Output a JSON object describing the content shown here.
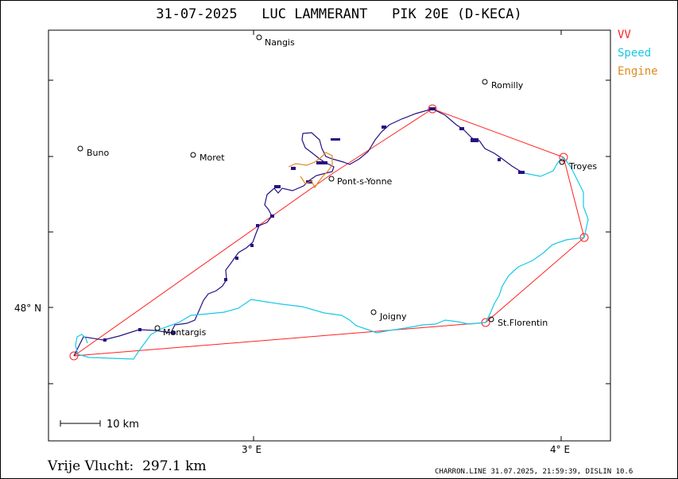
{
  "title": "31-07-2025   LUC LAMMERANT   PIK 20E (D-KECA)",
  "legend": [
    {
      "label": "VV",
      "color": "#ff2020"
    },
    {
      "label": "Speed",
      "color": "#18c8e8"
    },
    {
      "label": "Engine",
      "color": "#e08a1c"
    }
  ],
  "axes": {
    "x_ticks": [
      "3° E",
      "4° E"
    ],
    "y_ticks": [
      "48° N"
    ]
  },
  "scale_label": "10 km",
  "places": [
    {
      "name": "Nangis"
    },
    {
      "name": "Romilly"
    },
    {
      "name": "Buno"
    },
    {
      "name": "Moret"
    },
    {
      "name": "Troyes"
    },
    {
      "name": "Pont-s-Yonne"
    },
    {
      "name": "Montargis"
    },
    {
      "name": "Joigny"
    },
    {
      "name": "St.Florentin"
    }
  ],
  "summary": "Vrije Vlucht:  297.1 km",
  "footer": "CHARRON.LINE 31.07.2025, 21:59:39, DISLIN 10.6"
}
